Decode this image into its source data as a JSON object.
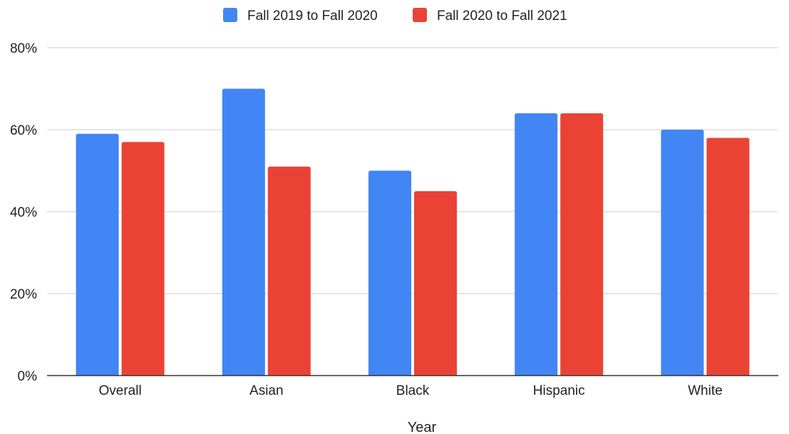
{
  "chart_data": {
    "type": "bar",
    "categories": [
      "Overall",
      "Asian",
      "Black",
      "Hispanic",
      "White"
    ],
    "series": [
      {
        "name": "Fall 2019 to Fall 2020",
        "color": "#4285f4",
        "values": [
          59,
          70,
          50,
          64,
          60
        ]
      },
      {
        "name": "Fall 2020 to Fall 2021",
        "color": "#ea4335",
        "values": [
          57,
          51,
          45,
          64,
          58
        ]
      }
    ],
    "xlabel": "Year",
    "ylabel": "",
    "ylim": [
      0,
      80
    ],
    "yticks": [
      0,
      20,
      40,
      60,
      80
    ],
    "ytick_labels": [
      "0%",
      "20%",
      "40%",
      "60%",
      "80%"
    ],
    "grid": true,
    "legend": "top-center"
  }
}
